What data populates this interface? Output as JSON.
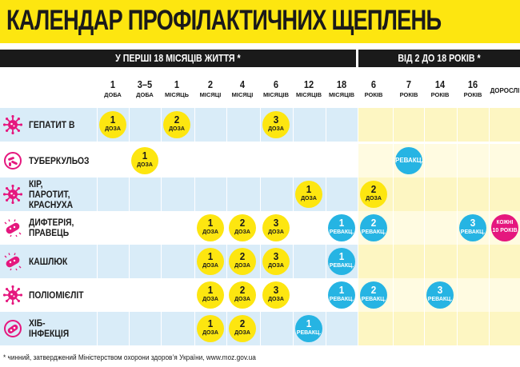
{
  "title": "КАЛЕНДАР ПРОФІЛАКТИЧНИХ ЩЕПЛЕНЬ",
  "bands": {
    "infant": "У ПЕРШІ 18 МІСЯЦІВ ЖИТТЯ *",
    "child": "ВІД 2 ДО 18 РОКІВ *"
  },
  "columns": [
    {
      "num": "1",
      "unit": "ДОБА"
    },
    {
      "num": "3–5",
      "unit": "ДОБА"
    },
    {
      "num": "1",
      "unit": "МІСЯЦЬ"
    },
    {
      "num": "2",
      "unit": "МІСЯЦІ"
    },
    {
      "num": "4",
      "unit": "МІСЯЦІ"
    },
    {
      "num": "6",
      "unit": "МІСЯЦІВ"
    },
    {
      "num": "12",
      "unit": "МІСЯЦІВ"
    },
    {
      "num": "18",
      "unit": "МІСЯЦІВ"
    },
    {
      "num": "6",
      "unit": "РОКІВ"
    },
    {
      "num": "7",
      "unit": "РОКІВ"
    },
    {
      "num": "14",
      "unit": "РОКІВ"
    },
    {
      "num": "16",
      "unit": "РОКІВ"
    },
    {
      "num": "",
      "unit": "ДОРОСЛІ"
    }
  ],
  "rows": [
    {
      "label": "ГЕПАТИТ В",
      "icon": "virus-icon",
      "bg": "blue",
      "doses": [
        {
          "col": 0,
          "num": "1",
          "label": "ДОЗА",
          "color": "yellow"
        },
        {
          "col": 2,
          "num": "2",
          "label": "ДОЗА",
          "color": "yellow"
        },
        {
          "col": 5,
          "num": "3",
          "label": "ДОЗА",
          "color": "yellow"
        }
      ]
    },
    {
      "label": "ТУБЕРКУЛЬОЗ",
      "icon": "bacteria-icon",
      "bg": "white",
      "doses": [
        {
          "col": 1,
          "num": "1",
          "label": "ДОЗА",
          "color": "yellow"
        },
        {
          "col": 9,
          "num": "",
          "label": "РЕВАКЦ.",
          "color": "blue"
        }
      ]
    },
    {
      "label": "КІР, ПАРОТИТ,\nКРАСНУХА",
      "icon": "virus-icon",
      "bg": "blue",
      "doses": [
        {
          "col": 6,
          "num": "1",
          "label": "ДОЗА",
          "color": "yellow"
        },
        {
          "col": 8,
          "num": "2",
          "label": "ДОЗА",
          "color": "yellow"
        }
      ]
    },
    {
      "label": "ДИФТЕРІЯ,\nПРАВЕЦЬ",
      "icon": "bacillus-icon",
      "bg": "white",
      "doses": [
        {
          "col": 3,
          "num": "1",
          "label": "ДОЗА",
          "color": "yellow"
        },
        {
          "col": 4,
          "num": "2",
          "label": "ДОЗА",
          "color": "yellow"
        },
        {
          "col": 5,
          "num": "3",
          "label": "ДОЗА",
          "color": "yellow"
        },
        {
          "col": 7,
          "num": "1",
          "label": "РЕВАКЦ.",
          "color": "blue"
        },
        {
          "col": 8,
          "num": "2",
          "label": "РЕВАКЦ.",
          "color": "blue"
        },
        {
          "col": 11,
          "num": "3",
          "label": "РЕВАКЦ.",
          "color": "blue"
        },
        {
          "col": 12,
          "num": "КОЖНІ",
          "label": "10 РОКІВ",
          "color": "pink"
        }
      ]
    },
    {
      "label": "КАШЛЮК",
      "icon": "bacillus-icon",
      "bg": "blue",
      "doses": [
        {
          "col": 3,
          "num": "1",
          "label": "ДОЗА",
          "color": "yellow"
        },
        {
          "col": 4,
          "num": "2",
          "label": "ДОЗА",
          "color": "yellow"
        },
        {
          "col": 5,
          "num": "3",
          "label": "ДОЗА",
          "color": "yellow"
        },
        {
          "col": 7,
          "num": "1",
          "label": "РЕВАКЦ.",
          "color": "blue"
        }
      ]
    },
    {
      "label": "ПОЛІОМІЄЛІТ",
      "icon": "virus-icon",
      "bg": "white",
      "doses": [
        {
          "col": 3,
          "num": "1",
          "label": "ДОЗА",
          "color": "yellow"
        },
        {
          "col": 4,
          "num": "2",
          "label": "ДОЗА",
          "color": "yellow"
        },
        {
          "col": 5,
          "num": "3",
          "label": "ДОЗА",
          "color": "yellow"
        },
        {
          "col": 7,
          "num": "1",
          "label": "РЕВАКЦ.",
          "color": "blue"
        },
        {
          "col": 8,
          "num": "2",
          "label": "РЕВАКЦ.",
          "color": "blue"
        },
        {
          "col": 10,
          "num": "3",
          "label": "РЕВАКЦ.",
          "color": "blue"
        }
      ]
    },
    {
      "label": "ХІБ-ІНФЕКЦІЯ",
      "icon": "bacterium-icon",
      "bg": "blue",
      "doses": [
        {
          "col": 3,
          "num": "1",
          "label": "ДОЗА",
          "color": "yellow"
        },
        {
          "col": 4,
          "num": "2",
          "label": "ДОЗА",
          "color": "yellow"
        },
        {
          "col": 6,
          "num": "1",
          "label": "РЕВАКЦ.",
          "color": "blue"
        }
      ]
    }
  ],
  "footnote": "* чинний, затверджений Міністерством охорони здоров’я України, www.moz.gov.ua",
  "colors": {
    "yellow": "#fde610",
    "blue": "#26b4e3",
    "pink": "#e5177e",
    "icon": "#e5177e"
  }
}
